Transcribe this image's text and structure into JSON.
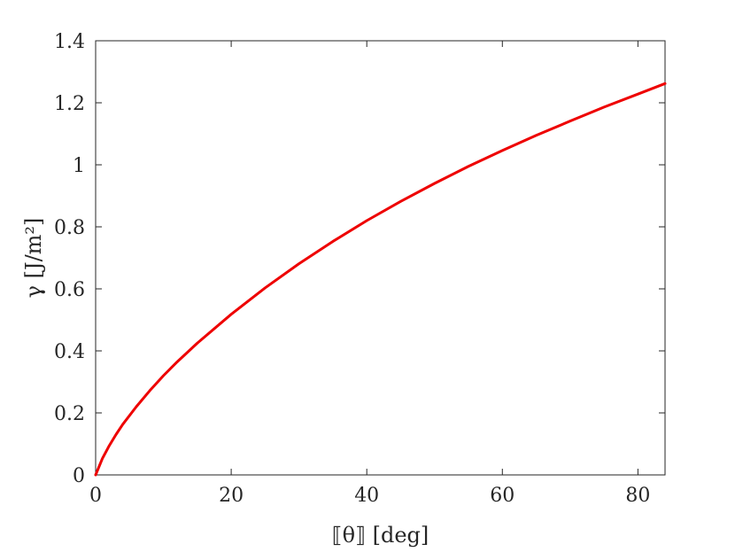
{
  "chart_data": {
    "type": "line",
    "xlabel": "⟦θ⟧ [deg]",
    "ylabel": "γ [J/m²]",
    "xlim": [
      0,
      84
    ],
    "ylim": [
      0,
      1.4
    ],
    "xticks": [
      0,
      20,
      40,
      60,
      80
    ],
    "xtick_labels": [
      "0",
      "20",
      "40",
      "60",
      "80"
    ],
    "yticks": [
      0,
      0.2,
      0.4,
      0.6,
      0.8,
      1.0,
      1.2,
      1.4
    ],
    "ytick_labels": [
      "0",
      "0.2",
      "0.4",
      "0.6",
      "0.8",
      "1",
      "1.2",
      "1.4"
    ],
    "grid": false,
    "series": [
      {
        "color": "#ee0000",
        "x": [
          0,
          1,
          2,
          3,
          4,
          6,
          8,
          10,
          12,
          15,
          20,
          25,
          30,
          35,
          40,
          45,
          50,
          55,
          60,
          65,
          70,
          75,
          80,
          84
        ],
        "y": [
          0,
          0.053,
          0.094,
          0.13,
          0.163,
          0.22,
          0.272,
          0.32,
          0.364,
          0.425,
          0.518,
          0.603,
          0.681,
          0.753,
          0.82,
          0.882,
          0.94,
          0.995,
          1.046,
          1.095,
          1.141,
          1.186,
          1.228,
          1.262
        ]
      }
    ]
  }
}
